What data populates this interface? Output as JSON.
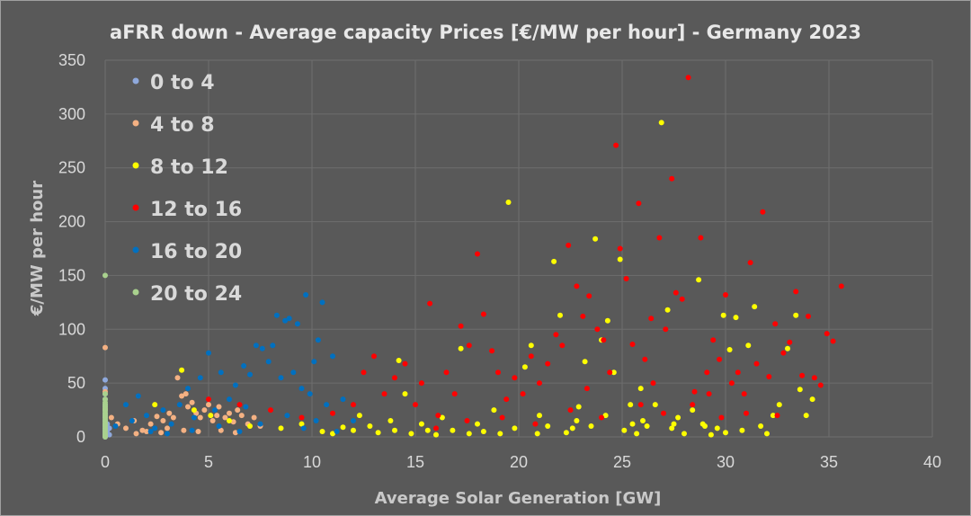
{
  "chart_data": {
    "type": "scatter",
    "title": "aFRR down - Average capacity Prices [€/MW per hour] - Germany 2023",
    "xlabel": "Average Solar Generation [GW]",
    "ylabel": "€/MW per hour",
    "xlim": [
      0,
      40
    ],
    "ylim": [
      0,
      350
    ],
    "xticks": [
      0,
      5,
      10,
      15,
      20,
      25,
      30,
      35,
      40
    ],
    "yticks": [
      0,
      50,
      100,
      150,
      200,
      250,
      300,
      350
    ],
    "grid": true,
    "legend_position": "top-left inside",
    "series": [
      {
        "name": "0 to 4",
        "color": "#8fa9dc",
        "points": [
          [
            0,
            53
          ],
          [
            0,
            45
          ],
          [
            0,
            40
          ],
          [
            0,
            35
          ],
          [
            0,
            30
          ],
          [
            0,
            28
          ],
          [
            0,
            25
          ],
          [
            0,
            22
          ],
          [
            0,
            20
          ],
          [
            0,
            18
          ],
          [
            0,
            15
          ],
          [
            0,
            12
          ],
          [
            0,
            10
          ],
          [
            0,
            8
          ],
          [
            0,
            6
          ],
          [
            0,
            5
          ],
          [
            0,
            3
          ],
          [
            0,
            2
          ],
          [
            0,
            1
          ],
          [
            0,
            0
          ],
          [
            0.1,
            12
          ],
          [
            0.1,
            6
          ],
          [
            0.1,
            3
          ],
          [
            0.2,
            8
          ],
          [
            0.2,
            2
          ]
        ]
      },
      {
        "name": "4 to 8",
        "color": "#f4b183",
        "points": [
          [
            0,
            83
          ],
          [
            0,
            42
          ],
          [
            0,
            26
          ],
          [
            0.3,
            18
          ],
          [
            0.6,
            12
          ],
          [
            1.0,
            8
          ],
          [
            1.4,
            15
          ],
          [
            1.8,
            6
          ],
          [
            2.2,
            12
          ],
          [
            2.5,
            19
          ],
          [
            2.8,
            15
          ],
          [
            3.1,
            22
          ],
          [
            3.3,
            18
          ],
          [
            3.5,
            55
          ],
          [
            3.7,
            38
          ],
          [
            3.9,
            40
          ],
          [
            4.0,
            28
          ],
          [
            4.2,
            32
          ],
          [
            4.4,
            22
          ],
          [
            4.6,
            18
          ],
          [
            4.8,
            25
          ],
          [
            5.0,
            30
          ],
          [
            5.2,
            15
          ],
          [
            5.4,
            20
          ],
          [
            5.5,
            28
          ],
          [
            5.8,
            18
          ],
          [
            6.0,
            22
          ],
          [
            6.2,
            14
          ],
          [
            6.4,
            25
          ],
          [
            6.6,
            20
          ],
          [
            6.9,
            12
          ],
          [
            7.2,
            18
          ],
          [
            7.5,
            10
          ],
          [
            1.5,
            3
          ],
          [
            2.0,
            5
          ],
          [
            2.7,
            4
          ],
          [
            3.0,
            8
          ],
          [
            3.8,
            6
          ],
          [
            4.5,
            5
          ],
          [
            5.6,
            6
          ],
          [
            6.3,
            4
          ]
        ]
      },
      {
        "name": "8 to 12",
        "color": "#ffff00",
        "points": [
          [
            3.7,
            62
          ],
          [
            2.4,
            30
          ],
          [
            4.3,
            25
          ],
          [
            5.1,
            20
          ],
          [
            6.0,
            15
          ],
          [
            7.0,
            10
          ],
          [
            8.5,
            8
          ],
          [
            9.5,
            12
          ],
          [
            10.5,
            5
          ],
          [
            11.0,
            3
          ],
          [
            11.5,
            9
          ],
          [
            12.0,
            6
          ],
          [
            12.3,
            20
          ],
          [
            12.8,
            10
          ],
          [
            13.2,
            4
          ],
          [
            13.8,
            15
          ],
          [
            14.0,
            6
          ],
          [
            14.2,
            71
          ],
          [
            14.5,
            40
          ],
          [
            14.8,
            3
          ],
          [
            15.3,
            12
          ],
          [
            15.6,
            6
          ],
          [
            16.0,
            2
          ],
          [
            16.3,
            18
          ],
          [
            16.8,
            6
          ],
          [
            17.2,
            82
          ],
          [
            17.6,
            3
          ],
          [
            18.0,
            12
          ],
          [
            18.3,
            5
          ],
          [
            18.8,
            25
          ],
          [
            19.1,
            3
          ],
          [
            19.5,
            218
          ],
          [
            19.8,
            8
          ],
          [
            20.3,
            65
          ],
          [
            20.6,
            85
          ],
          [
            20.9,
            3
          ],
          [
            21.4,
            10
          ],
          [
            21.7,
            163
          ],
          [
            22.0,
            113
          ],
          [
            22.3,
            4
          ],
          [
            22.6,
            8
          ],
          [
            22.9,
            28
          ],
          [
            23.2,
            70
          ],
          [
            23.5,
            10
          ],
          [
            23.7,
            184
          ],
          [
            24.0,
            90
          ],
          [
            24.3,
            108
          ],
          [
            24.6,
            60
          ],
          [
            24.9,
            165
          ],
          [
            25.1,
            6
          ],
          [
            25.4,
            30
          ],
          [
            25.7,
            3
          ],
          [
            25.9,
            45
          ],
          [
            26.2,
            10
          ],
          [
            26.6,
            30
          ],
          [
            26.9,
            292
          ],
          [
            27.2,
            118
          ],
          [
            27.4,
            8
          ],
          [
            27.7,
            18
          ],
          [
            28.0,
            3
          ],
          [
            28.4,
            25
          ],
          [
            28.7,
            146
          ],
          [
            29.0,
            10
          ],
          [
            29.3,
            2
          ],
          [
            29.6,
            8
          ],
          [
            29.9,
            113
          ],
          [
            30.2,
            81
          ],
          [
            30.5,
            111
          ],
          [
            30.8,
            6
          ],
          [
            31.1,
            85
          ],
          [
            31.4,
            121
          ],
          [
            31.7,
            10
          ],
          [
            32.0,
            3
          ],
          [
            32.3,
            20
          ],
          [
            32.6,
            30
          ],
          [
            33.0,
            82
          ],
          [
            33.4,
            113
          ],
          [
            33.6,
            44
          ],
          [
            33.9,
            20
          ],
          [
            34.2,
            35
          ],
          [
            24.2,
            20
          ],
          [
            26.0,
            15
          ],
          [
            27.5,
            12
          ],
          [
            22.8,
            15
          ],
          [
            21.0,
            20
          ],
          [
            28.9,
            12
          ],
          [
            30.0,
            4
          ],
          [
            25.5,
            12
          ]
        ]
      },
      {
        "name": "12 to 16",
        "color": "#ff0000",
        "points": [
          [
            5.0,
            35
          ],
          [
            6.5,
            30
          ],
          [
            8.0,
            25
          ],
          [
            9.5,
            18
          ],
          [
            11.0,
            22
          ],
          [
            12.0,
            30
          ],
          [
            12.5,
            60
          ],
          [
            13.0,
            75
          ],
          [
            13.5,
            40
          ],
          [
            14.0,
            55
          ],
          [
            14.5,
            68
          ],
          [
            15.0,
            30
          ],
          [
            15.3,
            50
          ],
          [
            15.7,
            124
          ],
          [
            16.1,
            20
          ],
          [
            16.5,
            60
          ],
          [
            16.9,
            40
          ],
          [
            17.2,
            103
          ],
          [
            17.6,
            85
          ],
          [
            18.0,
            170
          ],
          [
            18.3,
            114
          ],
          [
            18.7,
            80
          ],
          [
            19.0,
            60
          ],
          [
            19.4,
            35
          ],
          [
            19.8,
            55
          ],
          [
            20.2,
            40
          ],
          [
            20.6,
            75
          ],
          [
            21.0,
            50
          ],
          [
            21.4,
            68
          ],
          [
            21.8,
            95
          ],
          [
            22.1,
            85
          ],
          [
            22.4,
            178
          ],
          [
            22.8,
            140
          ],
          [
            23.1,
            112
          ],
          [
            23.4,
            131
          ],
          [
            23.8,
            100
          ],
          [
            24.1,
            90
          ],
          [
            24.4,
            60
          ],
          [
            24.7,
            271
          ],
          [
            24.9,
            175
          ],
          [
            25.2,
            147
          ],
          [
            25.5,
            86
          ],
          [
            25.8,
            217
          ],
          [
            26.1,
            72
          ],
          [
            26.4,
            110
          ],
          [
            26.8,
            185
          ],
          [
            27.1,
            100
          ],
          [
            27.4,
            240
          ],
          [
            27.6,
            134
          ],
          [
            27.9,
            128
          ],
          [
            28.2,
            334
          ],
          [
            28.5,
            42
          ],
          [
            28.8,
            185
          ],
          [
            29.1,
            60
          ],
          [
            29.4,
            90
          ],
          [
            29.7,
            72
          ],
          [
            30.0,
            132
          ],
          [
            30.3,
            50
          ],
          [
            30.6,
            60
          ],
          [
            30.9,
            40
          ],
          [
            31.2,
            162
          ],
          [
            31.5,
            68
          ],
          [
            31.8,
            209
          ],
          [
            32.1,
            56
          ],
          [
            32.4,
            105
          ],
          [
            32.8,
            78
          ],
          [
            33.1,
            88
          ],
          [
            33.4,
            135
          ],
          [
            33.7,
            57
          ],
          [
            34.0,
            112
          ],
          [
            34.3,
            55
          ],
          [
            34.6,
            48
          ],
          [
            34.9,
            96
          ],
          [
            35.2,
            89
          ],
          [
            35.6,
            140
          ],
          [
            16.0,
            8
          ],
          [
            17.5,
            15
          ],
          [
            19.2,
            18
          ],
          [
            20.8,
            12
          ],
          [
            22.5,
            25
          ],
          [
            24.0,
            18
          ],
          [
            25.9,
            30
          ],
          [
            27.0,
            22
          ],
          [
            28.4,
            30
          ],
          [
            29.8,
            18
          ],
          [
            31.0,
            22
          ],
          [
            32.5,
            20
          ],
          [
            23.3,
            45
          ],
          [
            26.5,
            50
          ],
          [
            29.2,
            40
          ]
        ]
      },
      {
        "name": "16 to 20",
        "color": "#0070c0",
        "points": [
          [
            0.5,
            10
          ],
          [
            1.0,
            30
          ],
          [
            1.3,
            15
          ],
          [
            1.6,
            38
          ],
          [
            2.0,
            20
          ],
          [
            2.4,
            8
          ],
          [
            2.8,
            25
          ],
          [
            3.2,
            12
          ],
          [
            3.6,
            30
          ],
          [
            4.0,
            45
          ],
          [
            4.3,
            18
          ],
          [
            4.6,
            55
          ],
          [
            5.0,
            78
          ],
          [
            5.3,
            25
          ],
          [
            5.6,
            60
          ],
          [
            6.0,
            35
          ],
          [
            6.3,
            48
          ],
          [
            6.7,
            66
          ],
          [
            7.0,
            58
          ],
          [
            7.3,
            85
          ],
          [
            7.6,
            82
          ],
          [
            7.9,
            70
          ],
          [
            8.1,
            85
          ],
          [
            8.3,
            113
          ],
          [
            8.5,
            55
          ],
          [
            8.7,
            108
          ],
          [
            8.9,
            110
          ],
          [
            9.1,
            60
          ],
          [
            9.3,
            105
          ],
          [
            9.5,
            45
          ],
          [
            9.7,
            132
          ],
          [
            9.9,
            40
          ],
          [
            10.1,
            70
          ],
          [
            10.3,
            90
          ],
          [
            10.5,
            125
          ],
          [
            10.7,
            30
          ],
          [
            11.0,
            75
          ],
          [
            11.5,
            35
          ],
          [
            12.0,
            15
          ],
          [
            2.2,
            5
          ],
          [
            3.0,
            3
          ],
          [
            4.2,
            6
          ],
          [
            5.5,
            10
          ],
          [
            6.5,
            5
          ],
          [
            7.5,
            12
          ],
          [
            8.8,
            20
          ],
          [
            9.6,
            8
          ],
          [
            10.2,
            15
          ],
          [
            11.2,
            5
          ],
          [
            6.8,
            28
          ]
        ]
      },
      {
        "name": "20 to 24",
        "color": "#a9d18e",
        "points": [
          [
            0,
            150
          ],
          [
            0,
            40
          ],
          [
            0,
            35
          ],
          [
            0,
            32
          ],
          [
            0,
            30
          ],
          [
            0,
            28
          ],
          [
            0,
            26
          ],
          [
            0,
            24
          ],
          [
            0,
            22
          ],
          [
            0,
            20
          ],
          [
            0,
            18
          ],
          [
            0,
            16
          ],
          [
            0,
            14
          ],
          [
            0,
            12
          ],
          [
            0,
            10
          ],
          [
            0,
            8
          ],
          [
            0,
            6
          ],
          [
            0,
            4
          ],
          [
            0,
            2
          ],
          [
            0,
            1
          ],
          [
            0,
            0
          ]
        ]
      }
    ]
  }
}
